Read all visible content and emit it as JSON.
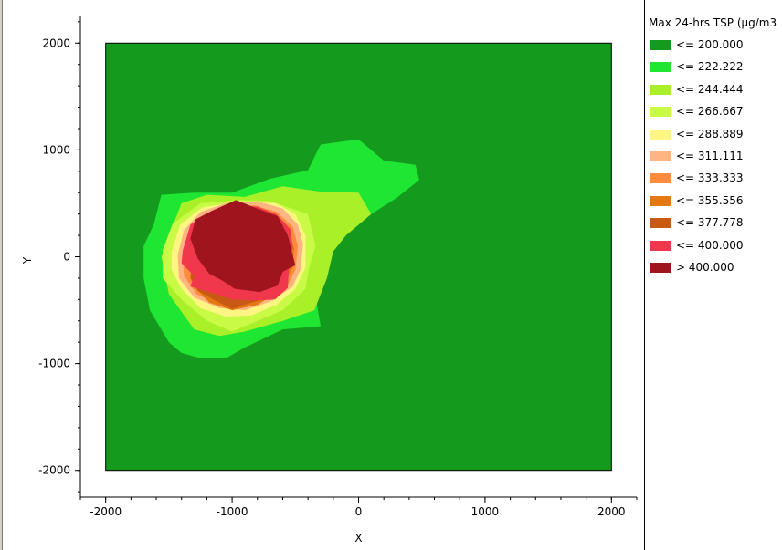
{
  "chart_data": {
    "type": "heatmap",
    "subtype": "contour",
    "xlabel": "X",
    "ylabel": "Y",
    "xlim": [
      -2200,
      2200
    ],
    "ylim": [
      -2250,
      2250
    ],
    "domain": {
      "x": [
        -2000,
        2000
      ],
      "y": [
        -2000,
        2000
      ]
    },
    "xticks": [
      -2000,
      -1000,
      0,
      1000,
      2000
    ],
    "yticks": [
      2000,
      1000,
      0,
      -1000,
      -2000
    ],
    "x_tick_labels": [
      "-2000",
      "-1000",
      "0",
      "1000",
      "2000"
    ],
    "y_tick_labels": [
      "2000",
      "1000",
      "0",
      "-1000",
      "-2000"
    ],
    "legend": {
      "title": "Max 24-hrs TSP (µg/m3",
      "placement": "right",
      "items": [
        {
          "label": "<= 200.000",
          "color": "#149b1e"
        },
        {
          "label": "<= 222.222",
          "color": "#1ee632"
        },
        {
          "label": "<= 244.444",
          "color": "#aaf028"
        },
        {
          "label": "<= 266.667",
          "color": "#c8fa46"
        },
        {
          "label": "<= 288.889",
          "color": "#fff582"
        },
        {
          "label": "<= 311.111",
          "color": "#ffb482"
        },
        {
          "label": "<= 333.333",
          "color": "#ff8c3c"
        },
        {
          "label": "<= 355.556",
          "color": "#e67814"
        },
        {
          "label": "<= 377.778",
          "color": "#c85a14"
        },
        {
          "label": "<= 400.000",
          "color": "#f0374b"
        },
        {
          "label": "> 400.000",
          "color": "#a0141e"
        }
      ]
    },
    "contours": [
      {
        "level": "<= 222.222",
        "color": "#1ee632",
        "points": [
          [
            -1620,
            300
          ],
          [
            -1560,
            580
          ],
          [
            -1300,
            600
          ],
          [
            -1000,
            600
          ],
          [
            -700,
            730
          ],
          [
            -400,
            810
          ],
          [
            -300,
            1050
          ],
          [
            0,
            1100
          ],
          [
            200,
            900
          ],
          [
            450,
            860
          ],
          [
            480,
            720
          ],
          [
            300,
            550
          ],
          [
            100,
            400
          ],
          [
            -200,
            180
          ],
          [
            -350,
            -100
          ],
          [
            -350,
            -300
          ],
          [
            -300,
            -650
          ],
          [
            -600,
            -680
          ],
          [
            -900,
            -850
          ],
          [
            -1050,
            -950
          ],
          [
            -1250,
            -950
          ],
          [
            -1400,
            -900
          ],
          [
            -1500,
            -800
          ],
          [
            -1650,
            -500
          ],
          [
            -1700,
            -200
          ],
          [
            -1700,
            100
          ]
        ]
      },
      {
        "level": "<= 244.444",
        "color": "#aaf028",
        "points": [
          [
            -1500,
            200
          ],
          [
            -1400,
            500
          ],
          [
            -1200,
            580
          ],
          [
            -900,
            560
          ],
          [
            -600,
            660
          ],
          [
            -300,
            610
          ],
          [
            0,
            600
          ],
          [
            100,
            400
          ],
          [
            -100,
            200
          ],
          [
            -200,
            50
          ],
          [
            -250,
            -200
          ],
          [
            -350,
            -500
          ],
          [
            -600,
            -600
          ],
          [
            -900,
            -700
          ],
          [
            -1100,
            -740
          ],
          [
            -1300,
            -680
          ],
          [
            -1500,
            -350
          ],
          [
            -1560,
            0
          ]
        ]
      },
      {
        "level": "<= 266.667",
        "color": "#c8fa46",
        "points": [
          [
            -1550,
            60
          ],
          [
            -1470,
            310
          ],
          [
            -1250,
            500
          ],
          [
            -930,
            530
          ],
          [
            -700,
            520
          ],
          [
            -400,
            400
          ],
          [
            -340,
            100
          ],
          [
            -390,
            -100
          ],
          [
            -420,
            -300
          ],
          [
            -600,
            -500
          ],
          [
            -800,
            -600
          ],
          [
            -1000,
            -700
          ],
          [
            -1200,
            -600
          ],
          [
            -1400,
            -400
          ],
          [
            -1550,
            -200
          ]
        ]
      },
      {
        "level": "<= 288.889",
        "color": "#fff582",
        "points": [
          [
            -1480,
            50
          ],
          [
            -1410,
            300
          ],
          [
            -1240,
            460
          ],
          [
            -930,
            520
          ],
          [
            -650,
            500
          ],
          [
            -500,
            400
          ],
          [
            -420,
            200
          ],
          [
            -420,
            -100
          ],
          [
            -500,
            -300
          ],
          [
            -650,
            -450
          ],
          [
            -850,
            -550
          ],
          [
            -1050,
            -560
          ],
          [
            -1250,
            -480
          ],
          [
            -1400,
            -300
          ],
          [
            -1480,
            -120
          ]
        ]
      },
      {
        "level": "<= 311.111",
        "color": "#ffb482",
        "points": [
          [
            -1430,
            20
          ],
          [
            -1380,
            250
          ],
          [
            -1250,
            420
          ],
          [
            -1050,
            500
          ],
          [
            -800,
            520
          ],
          [
            -600,
            450
          ],
          [
            -480,
            300
          ],
          [
            -440,
            120
          ],
          [
            -460,
            -120
          ],
          [
            -520,
            -280
          ],
          [
            -700,
            -420
          ],
          [
            -900,
            -500
          ],
          [
            -1100,
            -480
          ],
          [
            -1300,
            -380
          ],
          [
            -1420,
            -200
          ]
        ]
      },
      {
        "level": "<= 333.333",
        "color": "#ff8c3c",
        "points": [
          [
            -1390,
            0
          ],
          [
            -1340,
            230
          ],
          [
            -1220,
            390
          ],
          [
            -1050,
            470
          ],
          [
            -820,
            480
          ],
          [
            -650,
            420
          ],
          [
            -520,
            280
          ],
          [
            -480,
            100
          ],
          [
            -500,
            -120
          ],
          [
            -560,
            -270
          ],
          [
            -720,
            -400
          ],
          [
            -920,
            -460
          ],
          [
            -1120,
            -440
          ],
          [
            -1280,
            -350
          ],
          [
            -1380,
            -180
          ]
        ]
      },
      {
        "level": "<= 355.556",
        "color": "#e67814",
        "points": [
          [
            -1350,
            -20
          ],
          [
            -1310,
            200
          ],
          [
            -1200,
            360
          ],
          [
            -1050,
            440
          ],
          [
            -820,
            440
          ],
          [
            -660,
            390
          ],
          [
            -550,
            250
          ],
          [
            -510,
            80
          ],
          [
            -520,
            -100
          ],
          [
            -600,
            -300
          ],
          [
            -800,
            -450
          ],
          [
            -1000,
            -500
          ],
          [
            -1180,
            -430
          ],
          [
            -1300,
            -280
          ]
        ]
      },
      {
        "level": "<= 377.778",
        "color": "#c85a14",
        "points": [
          [
            -1320,
            -80
          ],
          [
            -1330,
            -200
          ],
          [
            -1270,
            -320
          ],
          [
            -1150,
            -400
          ],
          [
            -1000,
            -490
          ],
          [
            -850,
            -430
          ],
          [
            -700,
            -380
          ],
          [
            -900,
            -300
          ],
          [
            -1100,
            -250
          ],
          [
            -1200,
            -150
          ]
        ]
      },
      {
        "level": "<= 400.000",
        "color": "#f0374b",
        "points": [
          [
            -1390,
            60
          ],
          [
            -1330,
            300
          ],
          [
            -1210,
            400
          ],
          [
            -1040,
            480
          ],
          [
            -800,
            470
          ],
          [
            -650,
            400
          ],
          [
            -540,
            260
          ],
          [
            -520,
            80
          ],
          [
            -550,
            -80
          ],
          [
            -560,
            -290
          ],
          [
            -660,
            -400
          ],
          [
            -820,
            -410
          ],
          [
            -1000,
            -400
          ],
          [
            -1180,
            -330
          ],
          [
            -1330,
            -280
          ],
          [
            -1300,
            -180
          ],
          [
            -1400,
            -60
          ]
        ]
      },
      {
        "level": "> 400.000",
        "color": "#a0141e",
        "points": [
          [
            -1330,
            170
          ],
          [
            -1290,
            350
          ],
          [
            -1160,
            430
          ],
          [
            -970,
            530
          ],
          [
            -800,
            450
          ],
          [
            -640,
            380
          ],
          [
            -560,
            200
          ],
          [
            -530,
            60
          ],
          [
            -500,
            -80
          ],
          [
            -600,
            -140
          ],
          [
            -640,
            -270
          ],
          [
            -780,
            -330
          ],
          [
            -980,
            -300
          ],
          [
            -1080,
            -220
          ],
          [
            -1180,
            -160
          ],
          [
            -1270,
            -20
          ]
        ]
      }
    ]
  }
}
